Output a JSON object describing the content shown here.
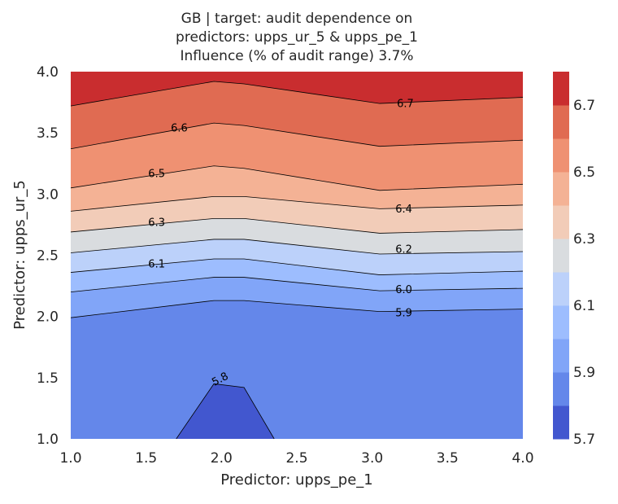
{
  "chart_data": {
    "type": "heatmap",
    "title_lines": [
      "GB | target: audit dependence on",
      "predictors: upps_ur_5 & upps_pe_1",
      "Influence (% of audit range) 3.7%"
    ],
    "xlabel": "Predictor: upps_pe_1",
    "ylabel": "Predictor: upps_ur_5",
    "xlim": [
      1.0,
      4.0
    ],
    "ylim": [
      1.0,
      4.0
    ],
    "xticks": [
      "1.0",
      "1.5",
      "2.0",
      "2.5",
      "3.0",
      "3.5",
      "4.0"
    ],
    "yticks": [
      "1.0",
      "1.5",
      "2.0",
      "2.5",
      "3.0",
      "3.5",
      "4.0"
    ],
    "x_grid": [
      1.0,
      1.95,
      2.15,
      3.05,
      4.0
    ],
    "levels": [
      5.7,
      5.8,
      5.85,
      5.9,
      5.95,
      6.0,
      6.05,
      6.1,
      6.15,
      6.2,
      6.25,
      6.3,
      6.35,
      6.4,
      6.45,
      6.5,
      6.55,
      6.6,
      6.65,
      6.7,
      6.8
    ],
    "level_colors": [
      "#4257cf",
      "#6487ea",
      "#81a5f8",
      "#9dbdfe",
      "#bcd1fa",
      "#d9dcdf",
      "#f2ccb8",
      "#f4b295",
      "#ef9172",
      "#e06b52",
      "#c92d2f"
    ],
    "contour_lines": [
      {
        "value": 5.8,
        "y": [
          null,
          1.45,
          1.42,
          null,
          null
        ]
      },
      {
        "value": 5.85,
        "y": [
          1.99,
          2.13,
          2.13,
          2.04,
          2.06
        ]
      },
      {
        "value": 5.9,
        "y": [
          2.2,
          2.32,
          2.32,
          2.21,
          2.23
        ]
      },
      {
        "value": 6.0,
        "y": [
          2.36,
          2.47,
          2.47,
          2.34,
          2.37
        ]
      },
      {
        "value": 6.1,
        "y": [
          2.52,
          2.63,
          2.63,
          2.51,
          2.53
        ]
      },
      {
        "value": 6.2,
        "y": [
          2.69,
          2.8,
          2.8,
          2.68,
          2.71
        ]
      },
      {
        "value": 6.3,
        "y": [
          2.86,
          2.98,
          2.98,
          2.88,
          2.91
        ]
      },
      {
        "value": 6.45,
        "y": [
          3.05,
          3.23,
          3.21,
          3.03,
          3.08
        ]
      },
      {
        "value": 6.55,
        "y": [
          3.37,
          3.58,
          3.56,
          3.39,
          3.44
        ]
      },
      {
        "value": 6.65,
        "y": [
          3.72,
          3.92,
          3.9,
          3.74,
          3.79
        ]
      }
    ],
    "contour_labels": [
      {
        "text": "5.8",
        "x": 1.99,
        "y": 1.49,
        "angle": -28
      },
      {
        "text": "5.9",
        "x": 3.21,
        "y": 2.03,
        "angle": 0
      },
      {
        "text": "6.0",
        "x": 3.21,
        "y": 2.22,
        "angle": 0
      },
      {
        "text": "6.1",
        "x": 1.57,
        "y": 2.43,
        "angle": 0
      },
      {
        "text": "6.2",
        "x": 3.21,
        "y": 2.55,
        "angle": 0
      },
      {
        "text": "6.3",
        "x": 1.57,
        "y": 2.77,
        "angle": 0
      },
      {
        "text": "6.4",
        "x": 3.21,
        "y": 2.88,
        "angle": 0
      },
      {
        "text": "6.5",
        "x": 1.57,
        "y": 3.17,
        "angle": 0
      },
      {
        "text": "6.6",
        "x": 1.72,
        "y": 3.54,
        "angle": 0
      },
      {
        "text": "6.7",
        "x": 3.22,
        "y": 3.74,
        "angle": 0
      }
    ],
    "colorbar": {
      "ticks": [
        "5.7",
        "5.9",
        "6.1",
        "6.3",
        "6.5",
        "6.7"
      ],
      "tick_values": [
        5.7,
        5.9,
        6.1,
        6.3,
        6.5,
        6.7
      ]
    }
  }
}
